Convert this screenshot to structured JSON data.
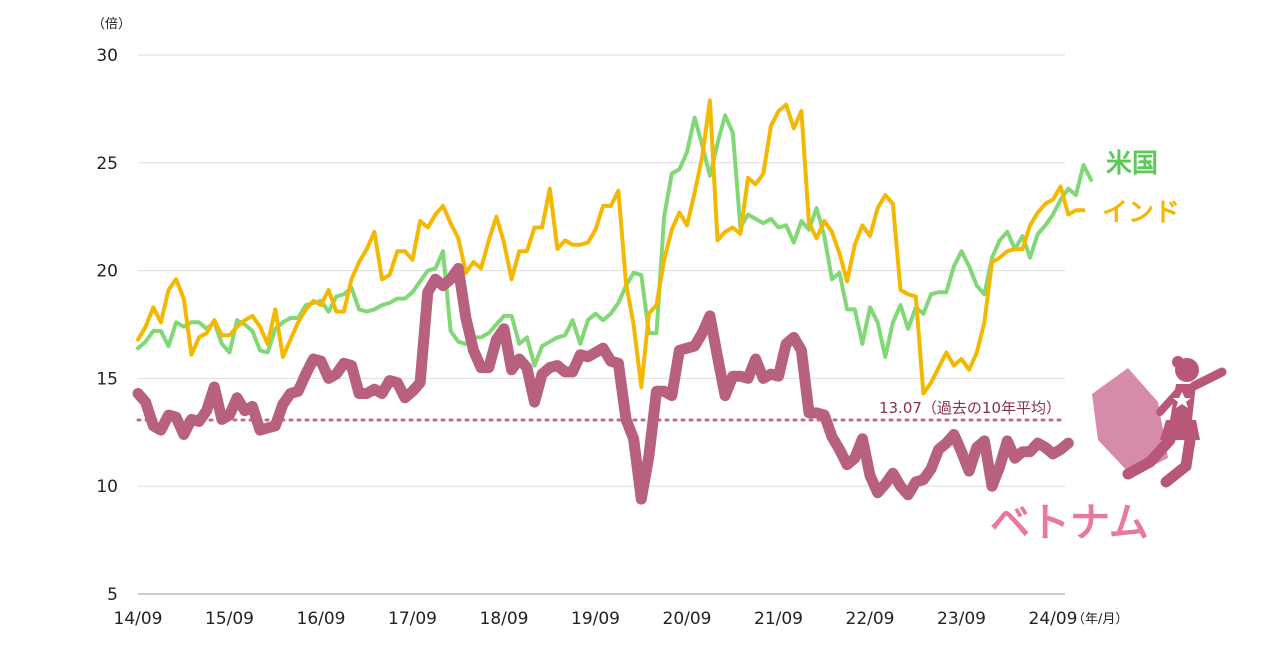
{
  "chart_data": {
    "type": "line",
    "y_unit": "（倍）",
    "x_unit": "（年/月）",
    "ylim": [
      5,
      30
    ],
    "yticks": [
      "5",
      "10",
      "15",
      "20",
      "25",
      "30"
    ],
    "ytick_values": [
      5,
      10,
      15,
      20,
      25,
      30
    ],
    "xticks": [
      "14/09",
      "15/09",
      "16/09",
      "17/09",
      "18/09",
      "19/09",
      "20/09",
      "21/09",
      "22/09",
      "23/09",
      "24/09"
    ],
    "x_start": "2014-09",
    "grid": true,
    "reference_line": {
      "value": 13.07,
      "label": "13.07（過去の10年平均）",
      "color": "#c06a8e"
    },
    "colors": {
      "us": "#82d877",
      "india": "#f5b800",
      "vietnam": "#b86080"
    },
    "series": [
      {
        "key": "us",
        "name": "米国",
        "values": [
          16.4,
          16.7,
          17.2,
          17.2,
          16.5,
          17.6,
          17.4,
          17.6,
          17.6,
          17.3,
          17.6,
          16.6,
          16.2,
          17.7,
          17.5,
          17.2,
          16.3,
          16.2,
          17.3,
          17.6,
          17.8,
          17.8,
          18.4,
          18.5,
          18.6,
          18.1,
          18.8,
          18.9,
          19.2,
          18.2,
          18.1,
          18.2,
          18.4,
          18.5,
          18.7,
          18.7,
          19.0,
          19.5,
          20.0,
          20.1,
          20.9,
          17.2,
          16.7,
          16.6,
          16.9,
          16.9,
          17.1,
          17.5,
          17.9,
          17.9,
          16.6,
          16.9,
          15.6,
          16.5,
          16.7,
          16.9,
          17.0,
          17.7,
          16.6,
          17.7,
          18.0,
          17.7,
          18.0,
          18.5,
          19.3,
          19.9,
          19.8,
          17.1,
          17.1,
          22.5,
          24.5,
          24.7,
          25.5,
          27.1,
          25.8,
          24.4,
          25.9,
          27.2,
          26.4,
          22.0,
          22.6,
          22.4,
          22.2,
          22.4,
          22.0,
          22.1,
          21.3,
          22.3,
          21.9,
          22.9,
          21.6,
          19.6,
          19.9,
          18.2,
          18.2,
          16.6,
          18.3,
          17.6,
          16.0,
          17.6,
          18.4,
          17.3,
          18.3,
          18.0,
          18.9,
          19.0,
          19.0,
          20.2,
          20.9,
          20.2,
          19.3,
          18.9,
          20.6,
          21.4,
          21.8,
          21.0,
          21.6,
          20.6,
          21.7,
          22.1,
          22.6,
          23.3,
          23.8,
          23.5,
          24.9,
          24.2
        ]
      },
      {
        "key": "india",
        "name": "インド",
        "values": [
          16.8,
          17.4,
          18.3,
          17.6,
          19.1,
          19.6,
          18.7,
          16.1,
          16.9,
          17.1,
          17.7,
          17.0,
          17.0,
          17.4,
          17.7,
          17.9,
          17.4,
          16.6,
          18.2,
          16.0,
          16.8,
          17.6,
          18.2,
          18.6,
          18.4,
          19.1,
          18.1,
          18.1,
          19.6,
          20.4,
          21.0,
          21.8,
          19.6,
          19.8,
          20.9,
          20.9,
          20.5,
          22.3,
          22.0,
          22.6,
          23.0,
          22.2,
          21.5,
          19.9,
          20.4,
          20.1,
          21.4,
          22.5,
          21.3,
          19.6,
          20.9,
          20.9,
          22.0,
          22.0,
          23.8,
          21.0,
          21.4,
          21.2,
          21.2,
          21.3,
          21.9,
          23.0,
          23.0,
          23.7,
          19.4,
          17.5,
          14.6,
          18.0,
          18.4,
          20.5,
          21.9,
          22.7,
          22.1,
          23.6,
          25.3,
          27.9,
          21.4,
          21.8,
          22.0,
          21.7,
          24.3,
          24.0,
          24.5,
          26.7,
          27.4,
          27.7,
          26.6,
          27.4,
          22.2,
          21.5,
          22.3,
          21.8,
          20.8,
          19.5,
          21.2,
          22.1,
          21.6,
          22.9,
          23.5,
          23.1,
          19.1,
          18.9,
          18.8,
          14.3,
          14.8,
          15.5,
          16.2,
          15.6,
          15.9,
          15.4,
          16.2,
          17.6,
          20.4,
          20.6,
          20.9,
          21.0,
          21.0,
          22.1,
          22.7,
          23.1,
          23.3,
          23.9,
          22.6,
          22.8,
          22.8
        ]
      },
      {
        "key": "vietnam",
        "name": "ベトナム",
        "values": [
          14.3,
          13.9,
          12.8,
          12.6,
          13.3,
          13.2,
          12.4,
          13.1,
          13.0,
          13.5,
          14.6,
          13.1,
          13.3,
          14.1,
          13.5,
          13.7,
          12.6,
          12.7,
          12.8,
          13.8,
          14.3,
          14.4,
          15.2,
          15.9,
          15.8,
          15.0,
          15.2,
          15.7,
          15.6,
          14.3,
          14.3,
          14.5,
          14.3,
          14.9,
          14.8,
          14.1,
          14.4,
          14.8,
          19.0,
          19.6,
          19.3,
          19.6,
          20.1,
          17.8,
          16.3,
          15.5,
          15.5,
          16.8,
          17.3,
          15.4,
          15.9,
          15.5,
          13.9,
          15.2,
          15.5,
          15.6,
          15.3,
          15.3,
          16.1,
          16.0,
          16.2,
          16.4,
          15.8,
          15.7,
          13.1,
          12.2,
          9.4,
          11.4,
          14.4,
          14.4,
          14.2,
          16.3,
          16.4,
          16.5,
          17.1,
          17.9,
          16.0,
          14.2,
          15.1,
          15.1,
          15.0,
          15.9,
          15.0,
          15.2,
          15.1,
          16.6,
          16.9,
          16.3,
          13.4,
          13.4,
          13.3,
          12.3,
          11.7,
          11.0,
          11.3,
          12.2,
          10.5,
          9.7,
          10.1,
          10.6,
          10.0,
          9.6,
          10.2,
          10.3,
          10.8,
          11.7,
          12.0,
          12.4,
          11.6,
          10.7,
          11.8,
          12.1,
          10.0,
          10.9,
          12.1,
          11.3,
          11.6,
          11.6,
          12.0,
          11.8,
          11.5,
          11.7,
          12.0
        ]
      }
    ]
  }
}
